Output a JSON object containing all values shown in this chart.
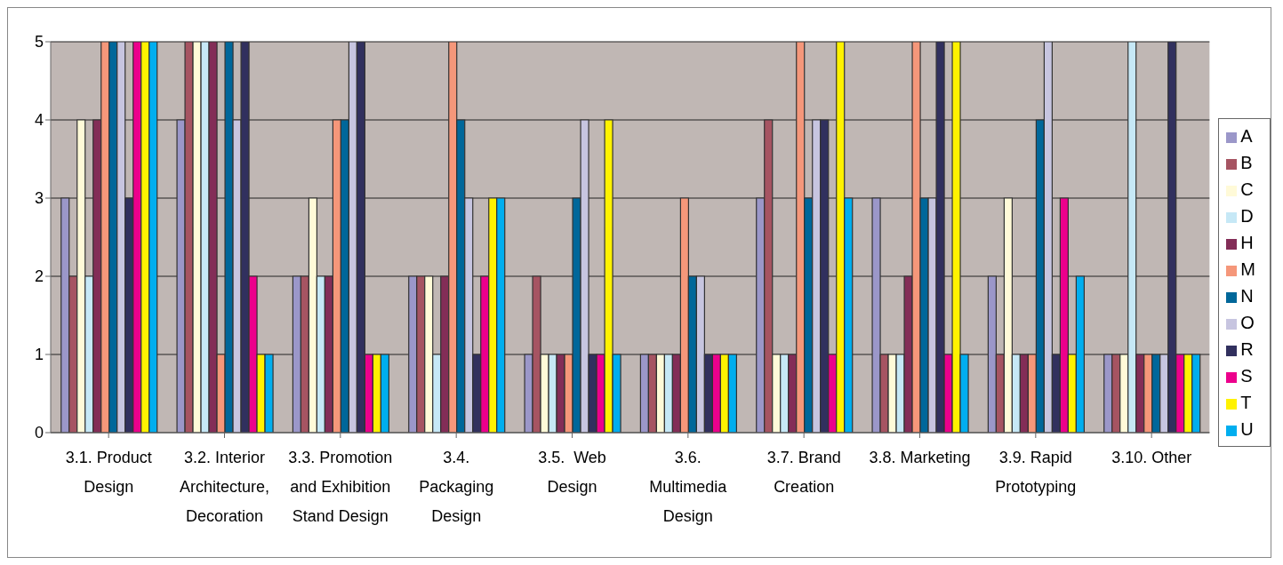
{
  "chart_data": {
    "type": "bar",
    "categories": [
      "3.1. Product Design",
      "3.2. Interior Architecture, Decoration",
      "3.3. Promotion and Exhibition Stand Design",
      "3.4. Packaging Design",
      "3.5.  Web Design",
      "3.6. Multimedia Design",
      "3.7. Brand Creation",
      "3.8. Marketing",
      "3.9. Rapid Prototyping",
      "3.10. Other"
    ],
    "series": [
      {
        "name": "A",
        "color": "#9b97c9",
        "values": [
          3,
          4,
          2,
          2,
          1,
          1,
          3,
          3,
          2,
          1
        ]
      },
      {
        "name": "B",
        "color": "#a65462",
        "values": [
          2,
          5,
          2,
          2,
          2,
          1,
          4,
          1,
          1,
          1
        ]
      },
      {
        "name": "C",
        "color": "#fffad8",
        "values": [
          4,
          5,
          3,
          2,
          1,
          1,
          1,
          1,
          3,
          1
        ]
      },
      {
        "name": "D",
        "color": "#c6e8f6",
        "values": [
          2,
          5,
          2,
          1,
          1,
          1,
          1,
          1,
          1,
          5
        ]
      },
      {
        "name": "H",
        "color": "#832d57",
        "values": [
          4,
          5,
          2,
          2,
          1,
          1,
          1,
          2,
          1,
          1
        ]
      },
      {
        "name": "M",
        "color": "#f5977a",
        "values": [
          5,
          1,
          4,
          5,
          1,
          3,
          5,
          5,
          1,
          1
        ]
      },
      {
        "name": "N",
        "color": "#00679a",
        "values": [
          5,
          5,
          4,
          4,
          3,
          2,
          3,
          3,
          4,
          1
        ]
      },
      {
        "name": "O",
        "color": "#c7c5e0",
        "values": [
          5,
          4,
          5,
          3,
          4,
          2,
          4,
          3,
          5,
          1
        ]
      },
      {
        "name": "R",
        "color": "#31305e",
        "values": [
          3,
          5,
          5,
          1,
          1,
          1,
          4,
          5,
          1,
          5
        ]
      },
      {
        "name": "S",
        "color": "#ec008c",
        "values": [
          5,
          2,
          1,
          2,
          1,
          1,
          1,
          1,
          3,
          1
        ]
      },
      {
        "name": "T",
        "color": "#fff200",
        "values": [
          5,
          1,
          1,
          3,
          4,
          1,
          5,
          5,
          1,
          1
        ]
      },
      {
        "name": "U",
        "color": "#00aeef",
        "values": [
          5,
          1,
          1,
          3,
          1,
          1,
          3,
          1,
          2,
          1
        ]
      }
    ],
    "ylim": [
      0,
      5
    ],
    "yticks": [
      0,
      1,
      2,
      3,
      4,
      5
    ],
    "grid": "y",
    "legend": "right"
  }
}
